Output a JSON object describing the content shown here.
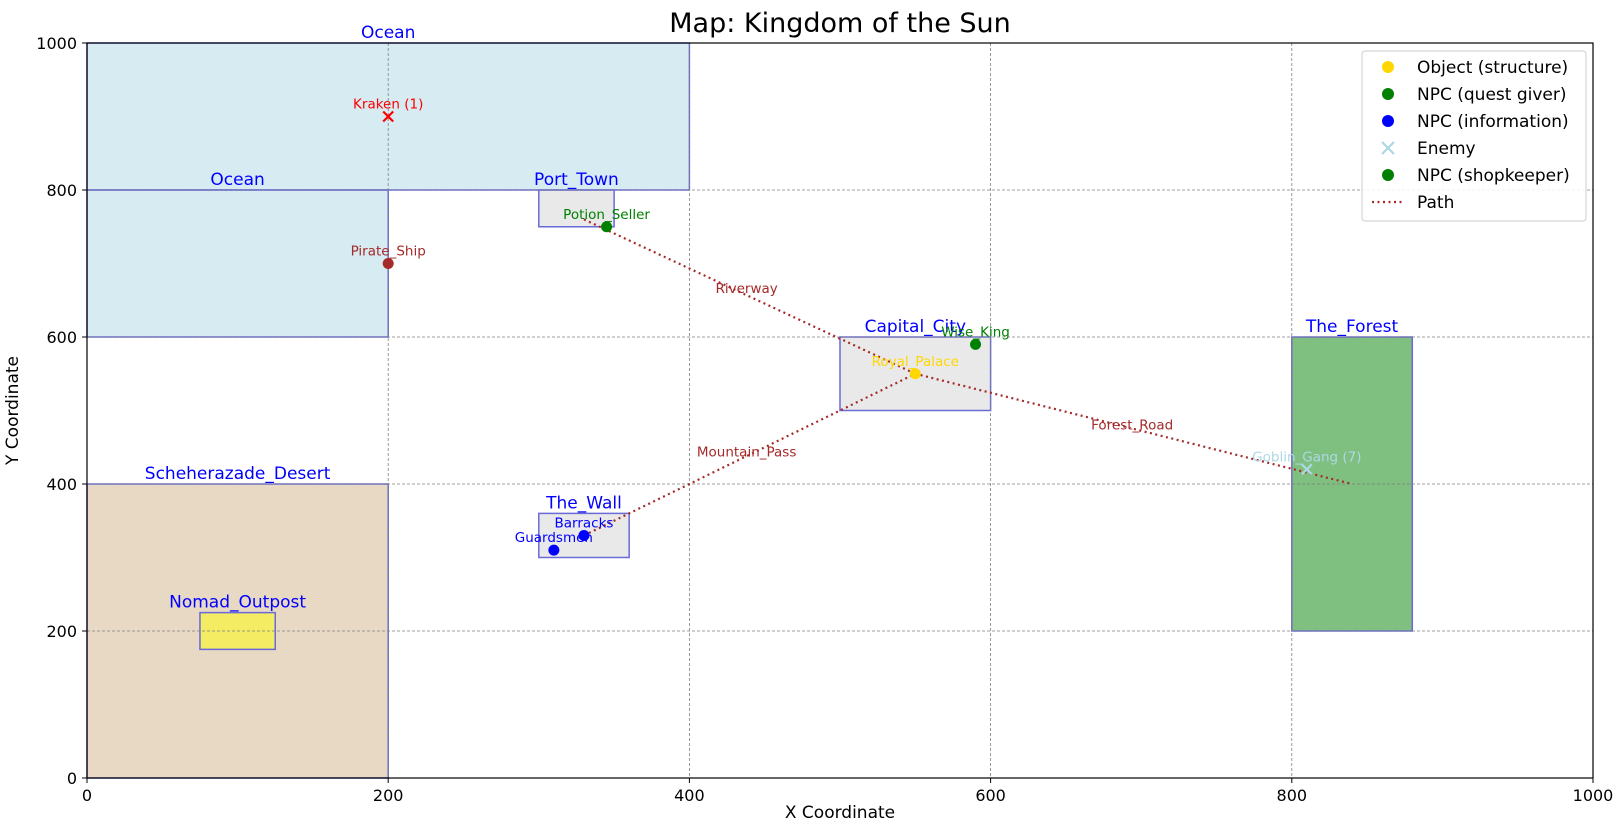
{
  "chart_data": {
    "type": "map",
    "title": "Map: Kingdom of the Sun",
    "xlabel": "X Coordinate",
    "ylabel": "Y Coordinate",
    "xlim": [
      0,
      1000
    ],
    "ylim": [
      0,
      1000
    ],
    "xticks": [
      0,
      200,
      400,
      600,
      800,
      1000
    ],
    "yticks": [
      0,
      200,
      400,
      600,
      800,
      1000
    ],
    "grid": true,
    "legend_position": "top-right",
    "regions": [
      {
        "id": "ocean-north",
        "label": "Ocean",
        "x0": 0,
        "y0": 800,
        "x1": 400,
        "y1": 1000,
        "color": "#add8e6",
        "opacity": 0.5
      },
      {
        "id": "ocean-west",
        "label": "Ocean",
        "x0": 0,
        "y0": 600,
        "x1": 200,
        "y1": 800,
        "color": "#add8e6",
        "opacity": 0.5
      },
      {
        "id": "desert",
        "label": "Scheherazade_Desert",
        "x0": 0,
        "y0": 0,
        "x1": 200,
        "y1": 400,
        "color": "#d2b48c",
        "opacity": 0.5
      },
      {
        "id": "nomad-outpost",
        "label": "Nomad_Outpost",
        "x0": 75,
        "y0": 175,
        "x1": 125,
        "y1": 225,
        "color": "#ffff00",
        "opacity": 0.5
      },
      {
        "id": "port-town",
        "label": "Port_Town",
        "x0": 300,
        "y0": 750,
        "x1": 350,
        "y1": 800,
        "color": "#d3d3d3",
        "opacity": 0.5
      },
      {
        "id": "capital-city",
        "label": "Capital_City",
        "x0": 500,
        "y0": 500,
        "x1": 600,
        "y1": 600,
        "color": "#d3d3d3",
        "opacity": 0.5
      },
      {
        "id": "the-wall",
        "label": "The_Wall",
        "x0": 300,
        "y0": 300,
        "x1": 360,
        "y1": 360,
        "color": "#d3d3d3",
        "opacity": 0.5
      },
      {
        "id": "the-forest",
        "label": "The_Forest",
        "x0": 800,
        "y0": 200,
        "x1": 880,
        "y1": 600,
        "color": "#008000",
        "opacity": 0.5
      }
    ],
    "paths": [
      {
        "id": "riverway",
        "label": "Riverway",
        "points": [
          [
            330,
            760
          ],
          [
            550,
            550
          ]
        ],
        "label_at": [
          438,
          667
        ]
      },
      {
        "id": "forest-road",
        "label": "Forest_Road",
        "points": [
          [
            550,
            550
          ],
          [
            840,
            400
          ]
        ],
        "label_at": [
          694,
          481
        ]
      },
      {
        "id": "mountain-pass",
        "label": "Mountain_Pass",
        "points": [
          [
            330,
            330
          ],
          [
            550,
            550
          ]
        ],
        "label_at": [
          438,
          444
        ]
      }
    ],
    "markers": [
      {
        "id": "kraken",
        "label": "Kraken (1)",
        "x": 200,
        "y": 900,
        "shape": "x",
        "color": "#ff0000",
        "label_color": "#ff0000"
      },
      {
        "id": "pirate-ship",
        "label": "Pirate_Ship",
        "x": 200,
        "y": 700,
        "shape": "circle",
        "color": "#a52a2a",
        "label_color": "#a52a2a"
      },
      {
        "id": "potion-seller",
        "label": "Potion_Seller",
        "x": 345,
        "y": 750,
        "shape": "circle",
        "color": "#008000",
        "label_color": "#008000"
      },
      {
        "id": "wise-king",
        "label": "Wise_King",
        "x": 590,
        "y": 590,
        "shape": "circle",
        "color": "#008000",
        "label_color": "#008000"
      },
      {
        "id": "royal-palace",
        "label": "Royal_Palace",
        "x": 550,
        "y": 550,
        "shape": "circle",
        "color": "#ffd700",
        "label_color": "#ffd700"
      },
      {
        "id": "barracks",
        "label": "Barracks",
        "x": 330,
        "y": 330,
        "shape": "circle",
        "color": "#0000ff",
        "label_color": "#0000ff"
      },
      {
        "id": "guardsmen",
        "label": "Guardsmen",
        "x": 310,
        "y": 310,
        "shape": "circle",
        "color": "#0000ff",
        "label_color": "#0000ff"
      },
      {
        "id": "goblin-gang",
        "label": "Goblin_Gang (7)",
        "x": 810,
        "y": 420,
        "shape": "x",
        "color": "#add8e6",
        "label_color": "#add8e6"
      }
    ],
    "legend": [
      {
        "label": "Object (structure)",
        "shape": "circle",
        "color": "#ffd700"
      },
      {
        "label": "NPC (quest giver)",
        "shape": "circle",
        "color": "#008000"
      },
      {
        "label": "NPC (information)",
        "shape": "circle",
        "color": "#0000ff"
      },
      {
        "label": "Enemy",
        "shape": "x",
        "color": "#add8e6"
      },
      {
        "label": "NPC (shopkeeper)",
        "shape": "circle",
        "color": "#008000"
      },
      {
        "label": "Path",
        "shape": "dotted-line",
        "color": "#a52a2a"
      }
    ]
  }
}
